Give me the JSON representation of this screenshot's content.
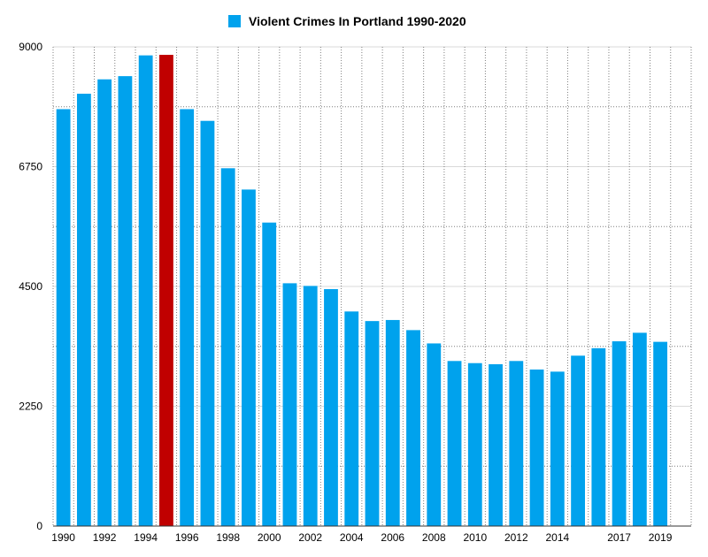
{
  "chart_data": {
    "type": "bar",
    "title": "",
    "xlabel": "",
    "ylabel": "",
    "ylim": [
      0,
      9000
    ],
    "yticks": [
      "0",
      "2250",
      "4500",
      "6750",
      "9000"
    ],
    "grid": true,
    "legend": {
      "position": "top",
      "entries": [
        "Violent Crimes In Portland 1990-2020"
      ]
    },
    "categories": [
      1990,
      1991,
      1992,
      1993,
      1994,
      1995,
      1996,
      1997,
      1998,
      1999,
      2000,
      2001,
      2002,
      2003,
      2004,
      2005,
      2006,
      2007,
      2008,
      2009,
      2010,
      2011,
      2012,
      2013,
      2014,
      2015,
      2016,
      2017,
      2018,
      2019,
      2020
    ],
    "xtick_labels": [
      "1990",
      "1992",
      "1994",
      "1996",
      "1998",
      "2000",
      "2002",
      "2004",
      "2006",
      "2008",
      "2010",
      "2012",
      "2014",
      "2017",
      "2019"
    ],
    "series": [
      {
        "name": "Violent Crimes In Portland 1990-2020",
        "values": [
          7830,
          8120,
          8390,
          8450,
          8840,
          8850,
          7830,
          7610,
          6720,
          6320,
          5700,
          4560,
          4510,
          4450,
          4030,
          3850,
          3870,
          3680,
          3430,
          3100,
          3060,
          3040,
          3100,
          2940,
          2900,
          3200,
          3340,
          3470,
          3630,
          3460,
          null
        ],
        "highlight": {
          "index": 5,
          "color": "#c00000"
        }
      }
    ]
  },
  "colors": {
    "bar": "#00a2ed",
    "highlight": "#c00000",
    "grid_major": "#d9d9d9",
    "grid_minor": "#7f7f7f",
    "axis": "#333333",
    "text": "#000000"
  }
}
